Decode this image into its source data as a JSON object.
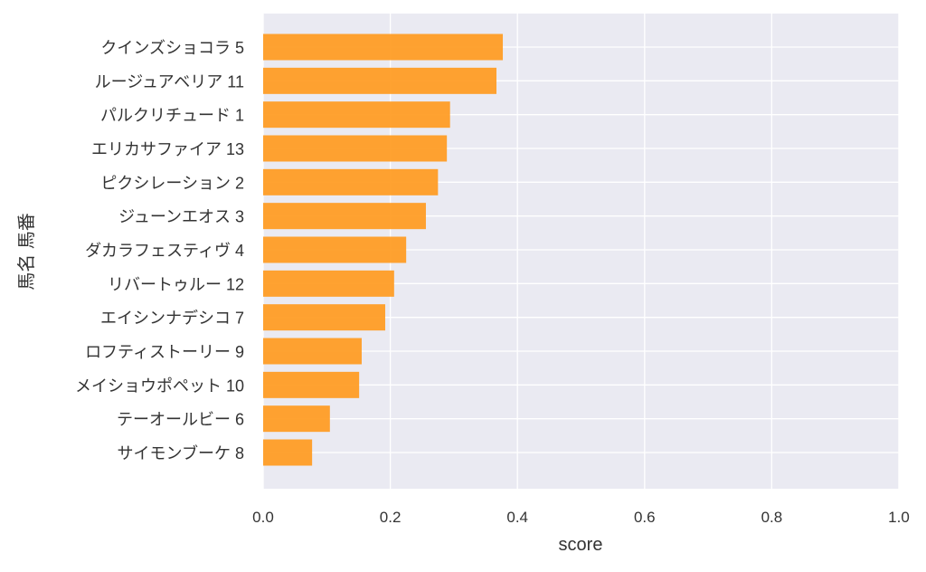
{
  "chart_data": {
    "type": "bar",
    "orientation": "horizontal",
    "title": "",
    "xlabel": "score",
    "ylabel": "馬名 馬番",
    "xlim": [
      0,
      1.0
    ],
    "xticks": [
      "0.0",
      "0.2",
      "0.4",
      "0.6",
      "0.8",
      "1.0"
    ],
    "grid": true,
    "bar_color": "#ff9a1f",
    "background_color": "#eaeaf2",
    "categories": [
      "クインズショコラ 5",
      "ルージュアベリア 11",
      "パルクリチュード 1",
      "エリカサファイア 13",
      "ピクシレーション 2",
      "ジューンエオス 3",
      "ダカラフェスティヴ 4",
      "リバートゥルー 12",
      "エイシンナデシコ 7",
      "ロフティストーリー 9",
      "メイショウポペット 10",
      "テーオールビー 6",
      "サイモンブーケ 8"
    ],
    "values": [
      0.377,
      0.367,
      0.294,
      0.289,
      0.275,
      0.256,
      0.225,
      0.206,
      0.192,
      0.155,
      0.151,
      0.105,
      0.077
    ]
  }
}
